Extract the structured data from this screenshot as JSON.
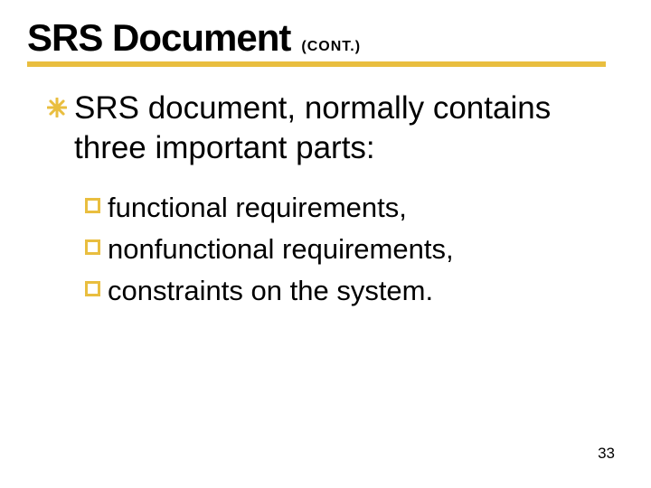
{
  "title": {
    "main": "SRS Document",
    "cont": "(CONT.)",
    "main_fontsize": 42,
    "cont_fontsize": 16,
    "color": "#000000",
    "underline_color": "#e9be3f",
    "underline_width": 640
  },
  "level1": {
    "text": "SRS document, normally contains three important parts:",
    "fontsize": 35,
    "color": "#000000",
    "bullet": {
      "type": "snowflake",
      "color": "#e9be3f",
      "size": 22
    }
  },
  "level2": {
    "items": [
      "functional requirements,",
      "nonfunctional requirements,",
      "constraints on the system."
    ],
    "fontsize": 31,
    "color": "#000000",
    "bullet": {
      "type": "square-outline",
      "color": "#e9be3f",
      "size": 17
    }
  },
  "page_number": {
    "value": "33",
    "fontsize": 17,
    "color": "#000000"
  },
  "background_color": "#ffffff"
}
